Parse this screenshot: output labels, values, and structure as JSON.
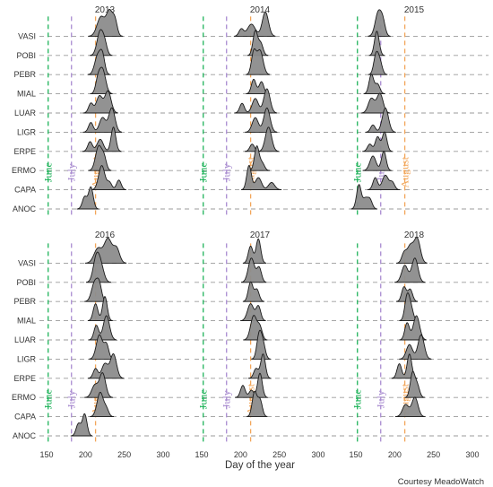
{
  "chart_data": {
    "type": "ridgeline",
    "xlabel": "Day of the year",
    "caption": "Courtesy MeadoWatch",
    "xlim": [
      150,
      300
    ],
    "xticks": [
      150,
      200,
      250,
      300
    ],
    "species": [
      "ANOC",
      "CAPA",
      "ERMO",
      "ERPE",
      "LIGR",
      "LUAR",
      "MIAL",
      "PEBR",
      "POBI",
      "VASI"
    ],
    "month_markers": [
      {
        "label": "June",
        "day": 152,
        "color": "#1fb35a"
      },
      {
        "label": "July",
        "day": 182,
        "color": "#a88bd0"
      },
      {
        "label": "August",
        "day": 213,
        "color": "#f2a65a"
      }
    ],
    "facets": [
      {
        "year": "2013",
        "ridges": {
          "VASI": [
            [
              220,
              0.8,
              5
            ],
            [
              231,
              1.0,
              4
            ],
            [
              238,
              0.6,
              3
            ]
          ],
          "POBI": [
            [
              219,
              1.0,
              4
            ],
            [
              225,
              0.4,
              3
            ]
          ],
          "PEBR": [
            [
              216,
              0.8,
              4
            ],
            [
              222,
              0.7,
              3
            ]
          ],
          "MIAL": [
            [
              222,
              1.0,
              4
            ],
            [
              216,
              0.5,
              3
            ]
          ],
          "LUAR": [
            [
              207,
              0.4,
              3
            ],
            [
              218,
              0.7,
              4
            ],
            [
              229,
              0.9,
              4
            ]
          ],
          "LIGR": [
            [
              207,
              0.4,
              3
            ],
            [
              222,
              0.6,
              4
            ],
            [
              234,
              1.0,
              4
            ]
          ],
          "ERPE": [
            [
              206,
              0.4,
              3
            ],
            [
              219,
              0.5,
              4
            ],
            [
              236,
              1.0,
              3
            ]
          ],
          "ERMO": [
            [
              217,
              1.0,
              4
            ],
            [
              224,
              0.5,
              3
            ]
          ],
          "CAPA": [
            [
              221,
              1.0,
              4
            ],
            [
              231,
              0.3,
              3
            ],
            [
              243,
              0.4,
              3
            ]
          ],
          "ANOC": [
            [
              199,
              0.5,
              3
            ],
            [
              207,
              0.9,
              3
            ]
          ]
        }
      },
      {
        "year": "2014",
        "ridges": {
          "VASI": [
            [
              201,
              0.3,
              3
            ],
            [
              214,
              0.5,
              5
            ],
            [
              232,
              1.0,
              4
            ]
          ],
          "POBI": [
            [
              219,
              1.0,
              3
            ],
            [
              226,
              0.5,
              3
            ]
          ],
          "PEBR": [
            [
              217,
              0.9,
              3
            ],
            [
              225,
              1.0,
              4
            ]
          ],
          "MIAL": [
            [
              217,
              0.6,
              3
            ],
            [
              227,
              0.5,
              3
            ]
          ],
          "LUAR": [
            [
              202,
              0.4,
              3
            ],
            [
              219,
              0.6,
              4
            ],
            [
              234,
              1.0,
              4
            ]
          ],
          "LIGR": [
            [
              219,
              0.6,
              4
            ],
            [
              234,
              1.0,
              4
            ]
          ],
          "ERPE": [
            [
              215,
              0.3,
              3
            ],
            [
              236,
              1.0,
              4
            ]
          ],
          "ERMO": [
            [
              221,
              1.0,
              3
            ],
            [
              228,
              0.3,
              3
            ]
          ],
          "CAPA": [
            [
              211,
              1.0,
              3
            ],
            [
              223,
              0.5,
              4
            ],
            [
              240,
              0.3,
              4
            ]
          ],
          "ANOC": []
        }
      },
      {
        "year": "2015",
        "ridges": {
          "VASI": [
            [
              179,
              1.0,
              4
            ],
            [
              185,
              0.5,
              3
            ]
          ],
          "POBI": [
            [
              177,
              1.0,
              3
            ]
          ],
          "PEBR": [
            [
              176,
              0.8,
              3
            ],
            [
              181,
              0.5,
              3
            ]
          ],
          "MIAL": [
            [
              170,
              0.8,
              3
            ],
            [
              178,
              0.4,
              3
            ]
          ],
          "LUAR": [
            [
              170,
              0.6,
              4
            ],
            [
              181,
              0.8,
              4
            ]
          ],
          "LIGR": [
            [
              172,
              0.3,
              3
            ],
            [
              188,
              1.0,
              4
            ]
          ],
          "ERPE": [
            [
              168,
              0.3,
              3
            ],
            [
              178,
              0.6,
              3
            ],
            [
              187,
              0.8,
              3
            ]
          ],
          "ERMO": [
            [
              172,
              0.6,
              4
            ],
            [
              186,
              0.8,
              3
            ]
          ],
          "CAPA": [
            [
              175,
              0.5,
              3
            ],
            [
              188,
              0.6,
              4
            ],
            [
              197,
              0.3,
              3
            ]
          ],
          "ANOC": [
            [
              154,
              1.0,
              3
            ],
            [
              162,
              0.4,
              3
            ],
            [
              168,
              0.4,
              3
            ]
          ]
        }
      },
      {
        "year": "2016",
        "ridges": {
          "VASI": [
            [
              216,
              0.6,
              5
            ],
            [
              229,
              1.0,
              5
            ],
            [
              240,
              0.6,
              4
            ]
          ],
          "POBI": [
            [
              214,
              1.0,
              4
            ],
            [
              220,
              0.6,
              4
            ]
          ],
          "PEBR": [
            [
              212,
              0.8,
              4
            ],
            [
              218,
              0.6,
              3
            ]
          ],
          "MIAL": [
            [
              213,
              0.7,
              3
            ],
            [
              225,
              1.0,
              3
            ]
          ],
          "LUAR": [
            [
              214,
              0.6,
              3
            ],
            [
              227,
              1.0,
              4
            ]
          ],
          "LIGR": [
            [
              218,
              1.0,
              4
            ],
            [
              227,
              0.6,
              3
            ]
          ],
          "ERPE": [
            [
              213,
              0.4,
              3
            ],
            [
              225,
              0.6,
              4
            ],
            [
              236,
              1.0,
              4
            ]
          ],
          "ERMO": [
            [
              212,
              0.5,
              4
            ],
            [
              222,
              1.0,
              4
            ]
          ],
          "CAPA": [
            [
              219,
              1.0,
              4
            ],
            [
              227,
              0.3,
              3
            ]
          ],
          "ANOC": [
            [
              191,
              0.5,
              3
            ],
            [
              199,
              0.9,
              3
            ]
          ]
        }
      },
      {
        "year": "2017",
        "ridges": {
          "VASI": [
            [
              213,
              0.7,
              3
            ],
            [
              223,
              1.0,
              3
            ]
          ],
          "POBI": [
            [
              214,
              1.0,
              4
            ],
            [
              224,
              0.6,
              3
            ]
          ],
          "PEBR": [
            [
              213,
              0.8,
              3
            ],
            [
              221,
              0.5,
              3
            ]
          ],
          "MIAL": [
            [
              213,
              0.7,
              4
            ],
            [
              223,
              0.6,
              3
            ]
          ],
          "LUAR": [
            [
              217,
              1.0,
              4
            ],
            [
              225,
              0.5,
              3
            ]
          ],
          "LIGR": [
            [
              224,
              1.0,
              3
            ],
            [
              229,
              0.6,
              3
            ]
          ],
          "ERPE": [
            [
              220,
              0.4,
              3
            ],
            [
              229,
              1.0,
              3
            ]
          ],
          "ERMO": [
            [
              203,
              0.5,
              3
            ],
            [
              214,
              0.3,
              3
            ],
            [
              225,
              1.0,
              3
            ]
          ],
          "CAPA": [
            [
              218,
              1.0,
              3
            ],
            [
              225,
              0.7,
              3
            ]
          ],
          "ANOC": []
        }
      },
      {
        "year": "2018",
        "ridges": {
          "VASI": [
            [
              212,
              0.4,
              3
            ],
            [
              220,
              0.7,
              4
            ],
            [
              229,
              1.0,
              4
            ]
          ],
          "POBI": [
            [
              213,
              0.7,
              4
            ],
            [
              226,
              1.0,
              4
            ]
          ],
          "PEBR": [
            [
              212,
              0.6,
              3
            ],
            [
              220,
              0.5,
              3
            ]
          ],
          "MIAL": [
            [
              216,
              1.0,
              3
            ],
            [
              221,
              0.5,
              3
            ]
          ],
          "LUAR": [
            [
              216,
              0.7,
              3
            ],
            [
              228,
              1.0,
              4
            ]
          ],
          "LIGR": [
            [
              219,
              0.6,
              4
            ],
            [
              234,
              1.0,
              4
            ]
          ],
          "ERPE": [
            [
              206,
              0.6,
              3
            ],
            [
              219,
              1.0,
              3
            ]
          ],
          "ERMO": [
            [
              223,
              1.0,
              3
            ],
            [
              229,
              0.5,
              3
            ]
          ],
          "CAPA": [
            [
              214,
              0.5,
              4
            ],
            [
              226,
              0.8,
              4
            ]
          ],
          "ANOC": []
        }
      }
    ]
  }
}
